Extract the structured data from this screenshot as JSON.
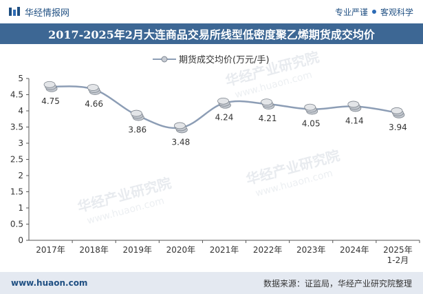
{
  "header": {
    "brand": "华经情报网",
    "tag_1": "专业严谨",
    "tag_2": "客观科学"
  },
  "title": "2017-2025年2月大连商品交易所线型低密度聚乙烯期货成交均价",
  "footer": {
    "url": "www.huaon.com",
    "source": "数据来源：证监局，华经产业研究院整理"
  },
  "watermark": {
    "cn": "华经产业研究院",
    "en": "www.huaon.com"
  },
  "colors": {
    "title_bg": "#3d6794",
    "line": "#8c9db5",
    "footer_bg": "#e4e9f1",
    "brand": "#1f4f82"
  },
  "chart_data": {
    "type": "line",
    "categories": [
      "2017年",
      "2018年",
      "2019年",
      "2020年",
      "2021年",
      "2022年",
      "2023年",
      "2024年",
      "2025年\n1-2月"
    ],
    "series": [
      {
        "name": "期货成交均价(万元/手)",
        "values": [
          4.75,
          4.66,
          3.86,
          3.48,
          4.24,
          4.21,
          4.05,
          4.14,
          3.94
        ],
        "labels": [
          "4.75",
          "4.66",
          "3.86",
          "3.48",
          "4.24",
          "4.21",
          "4.05",
          "4.14",
          "3.94"
        ]
      }
    ],
    "ylim": [
      0,
      5
    ],
    "yticks": [
      "0",
      "0.5",
      "1",
      "1.5",
      "2",
      "2.5",
      "3",
      "3.5",
      "4",
      "4.5",
      "5"
    ],
    "grid": false,
    "legend": "top-center",
    "smooth": true
  }
}
